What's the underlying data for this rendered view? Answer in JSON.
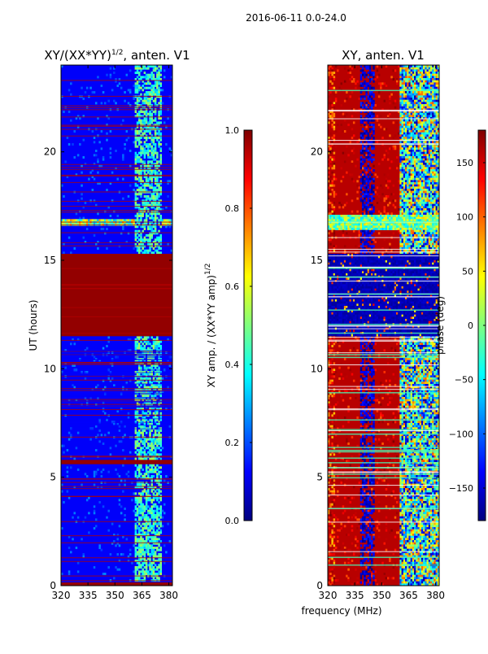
{
  "figure": {
    "suptitle": "2016-06-11 0.0-24.0",
    "xlabel": "frequency (MHz)"
  },
  "colors": {
    "jet": [
      "#00007f",
      "#0000ff",
      "#007fff",
      "#00ffff",
      "#7fff7f",
      "#ffff00",
      "#ff7f00",
      "#ff0000",
      "#7f0000"
    ]
  },
  "chart_data": [
    {
      "type": "heatmap",
      "name": "normalized-amplitude",
      "title": "XY/(XX*YY)",
      "title_superscript": "1/2",
      "title_suffix": ", anten. V1",
      "ylabel": "UT (hours)",
      "x_ticks": [
        "320",
        "335",
        "350",
        "365",
        "380"
      ],
      "x_tick_values": [
        320,
        335,
        350,
        365,
        380
      ],
      "y_ticks": [
        "0",
        "5",
        "10",
        "15",
        "20"
      ],
      "y_tick_values": [
        0,
        5,
        10,
        15,
        20
      ],
      "xlim": [
        320,
        382
      ],
      "ylim": [
        0,
        24
      ],
      "colorbar": {
        "label": "XY amp. / (XX*YY amp)",
        "label_superscript": "1/2",
        "min": 0.0,
        "max": 1.0,
        "ticks": [
          "0.0",
          "0.2",
          "0.4",
          "0.6",
          "0.8",
          "1.0"
        ],
        "tick_values": [
          0.0,
          0.2,
          0.4,
          0.6,
          0.8,
          1.0
        ]
      },
      "background_value": 0.12,
      "bands": [
        {
          "y0": 11.5,
          "y1": 15.3,
          "value": 0.98,
          "label": "saturated"
        },
        {
          "y0": 5.6,
          "y1": 5.8,
          "value": 0.98,
          "label": "saturated"
        },
        {
          "y0": 0.0,
          "y1": 0.15,
          "value": 0.98,
          "label": "saturated"
        },
        {
          "y0": 16.6,
          "y1": 16.9,
          "value": 0.4,
          "label": "mixed"
        }
      ],
      "active_freq_range_mhz": [
        361,
        376
      ],
      "active_value_range": [
        0.3,
        0.55
      ]
    },
    {
      "type": "heatmap",
      "name": "phase",
      "title": "XY, anten. V1",
      "ylabel": "",
      "x_ticks": [
        "320",
        "335",
        "350",
        "365",
        "380"
      ],
      "x_tick_values": [
        320,
        335,
        350,
        365,
        380
      ],
      "y_ticks": [
        "0",
        "5",
        "10",
        "15",
        "20"
      ],
      "y_tick_values": [
        0,
        5,
        10,
        15,
        20
      ],
      "xlim": [
        320,
        382
      ],
      "ylim": [
        0,
        24
      ],
      "colorbar": {
        "label": "phase (deg)",
        "min": -180,
        "max": 180,
        "ticks": [
          "−150",
          "−100",
          "−50",
          "0",
          "50",
          "100",
          "150"
        ],
        "tick_values": [
          -150,
          -100,
          -50,
          0,
          50,
          100,
          150
        ]
      },
      "background_value": 160,
      "bands": [
        {
          "y0": 11.5,
          "y1": 15.3,
          "value": -175,
          "label": "low-phase"
        },
        {
          "y0": 16.4,
          "y1": 17.1,
          "value": -20,
          "label": "mixed"
        }
      ]
    }
  ]
}
